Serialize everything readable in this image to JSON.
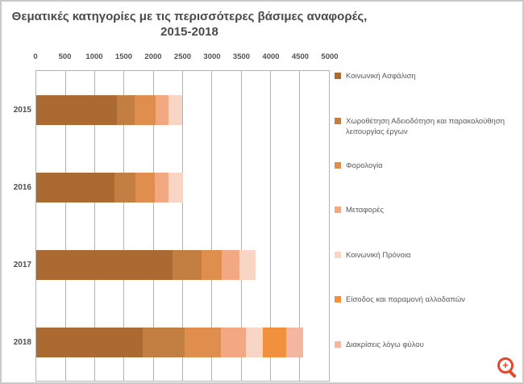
{
  "title": {
    "line1": "Θεματικές κατηγορίες με τις περισσότερες βάσιμες αναφορές,",
    "line2": "2015-2018"
  },
  "chart_data": {
    "type": "bar",
    "orientation": "horizontal",
    "stacked": true,
    "title": "Θεματικές κατηγορίες με τις περισσότερες βάσιμες αναφορές, 2015-2018",
    "categories": [
      "2015",
      "2016",
      "2017",
      "2018"
    ],
    "x_axis": {
      "min": 0,
      "max": 5000,
      "tick_interval": 500,
      "ticks": [
        0,
        500,
        1000,
        1500,
        2000,
        2500,
        3000,
        3500,
        4000,
        4500,
        5000
      ]
    },
    "grid": true,
    "legend_position": "right",
    "series": [
      {
        "name": "Κοινωνική Ασφάλιση",
        "color": "#AB6A32",
        "values": [
          1380,
          1340,
          2330,
          1820
        ]
      },
      {
        "name": "Χωροθέτηση Αδειοδότηση και παρακολούθηση λειτουργίας έργων",
        "color": "#C37E41",
        "values": [
          300,
          360,
          490,
          710
        ]
      },
      {
        "name": "Φορολογία",
        "color": "#DF8E4D",
        "values": [
          355,
          330,
          345,
          625
        ]
      },
      {
        "name": "Μεταφορές",
        "color": "#F2A981",
        "values": [
          230,
          230,
          310,
          425
        ]
      },
      {
        "name": "Κοινωνική Πρόνοια",
        "color": "#F8D5C4",
        "values": [
          225,
          250,
          275,
          290
        ]
      },
      {
        "name": "Είσοδος και παραμονή αλλοδαπών",
        "color": "#F2913D",
        "values": [
          0,
          0,
          0,
          400
        ]
      },
      {
        "name": "Διακρίσεις λόγω φύλου",
        "color": "#F4B69E",
        "values": [
          0,
          0,
          0,
          290
        ]
      }
    ],
    "totals": [
      2490,
      2510,
      3750,
      4560
    ]
  },
  "overlay": {
    "zoom_icon": "magnifier-plus-icon",
    "zoom_glyph": "+",
    "zoom_color": "#E2492C"
  }
}
